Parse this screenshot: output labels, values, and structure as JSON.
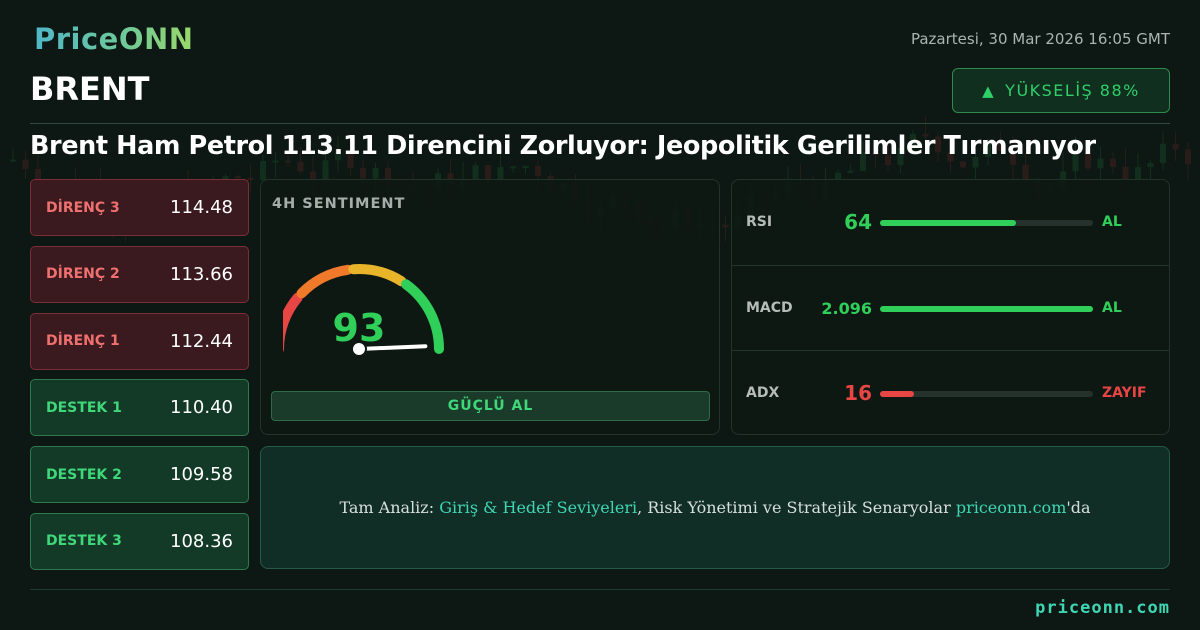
{
  "brand": {
    "logo": "PriceONN"
  },
  "header": {
    "datetime": "Pazartesi, 30 Mar 2026 16:05 GMT",
    "symbol": "BRENT",
    "trend": {
      "arrow": "▲",
      "label": "YÜKSELİŞ 88%"
    },
    "headline": "Brent Ham Petrol 113.11 Direncini Zorluyor: Jeopolitik Gerilimler Tırmanıyor"
  },
  "levels": [
    {
      "kind": "resistance",
      "label": "DİRENÇ 3",
      "value": "114.48"
    },
    {
      "kind": "resistance",
      "label": "DİRENÇ 2",
      "value": "113.66"
    },
    {
      "kind": "resistance",
      "label": "DİRENÇ 1",
      "value": "112.44"
    },
    {
      "kind": "support",
      "label": "DESTEK 1",
      "value": "110.40"
    },
    {
      "kind": "support",
      "label": "DESTEK 2",
      "value": "109.58"
    },
    {
      "kind": "support",
      "label": "DESTEK 3",
      "value": "108.36"
    }
  ],
  "sentiment": {
    "title": "4H SENTIMENT",
    "score": "93",
    "score_value": 93,
    "signal": "GÜÇLÜ AL",
    "gauge_colors": [
      "#e84545",
      "#f07a2a",
      "#e8b52a",
      "#2fcf5a"
    ]
  },
  "indicators": [
    {
      "name": "RSI",
      "value": "64",
      "fill": 0.64,
      "signal": "AL",
      "color": "#2fcf5a"
    },
    {
      "name": "MACD",
      "value": "2.096",
      "fill": 1.0,
      "signal": "AL",
      "color": "#2fcf5a"
    },
    {
      "name": "ADX",
      "value": "16",
      "fill": 0.16,
      "signal": "ZAYIF",
      "color": "#e84545"
    }
  ],
  "cta": {
    "prefix": "Tam Analiz: ",
    "highlight": "Giriş & Hedef Seviyeleri",
    "middle": ", Risk Yönetimi ve Stratejik Senaryolar ",
    "site": "priceonn.com",
    "suffix": "'da"
  },
  "footer": {
    "site": "priceonn.com"
  },
  "colors": {
    "accent": "#3fd6b4",
    "buy": "#2fcf5a",
    "sell": "#e84545",
    "background": "#0d1713"
  }
}
